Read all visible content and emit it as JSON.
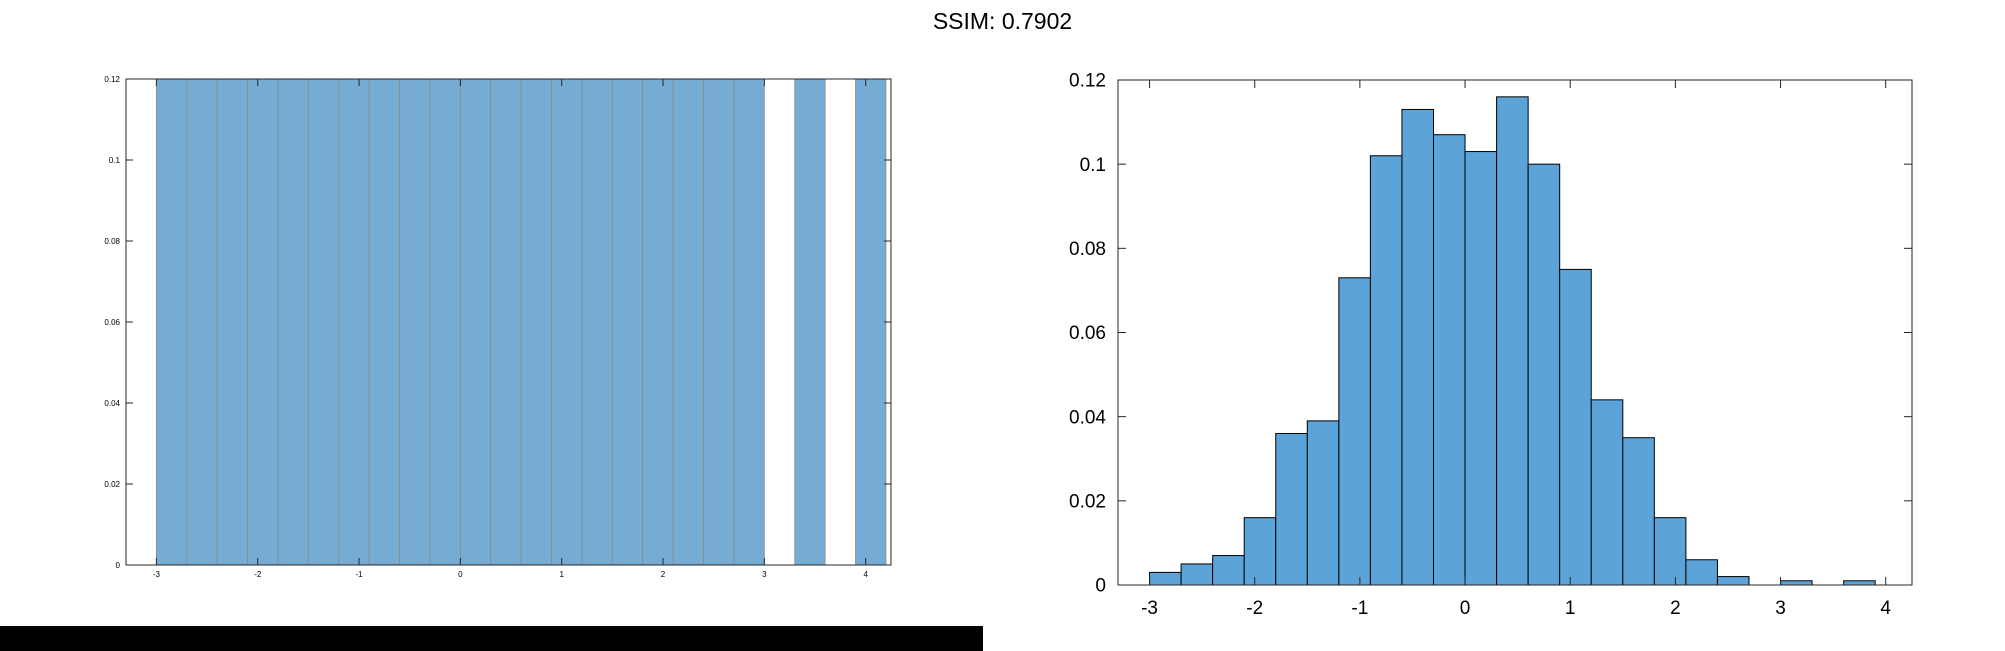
{
  "header": {
    "title": "SSIM: 0.7902"
  },
  "chart_data": [
    {
      "type": "bar",
      "bin_width": 0.3,
      "bin_start": -3.0,
      "values": [
        0.12,
        0.12,
        0.12,
        0.12,
        0.12,
        0.12,
        0.12,
        0.12,
        0.12,
        0.12,
        0.12,
        0.12,
        0.12,
        0.12,
        0.12,
        0.12,
        0.12,
        0.12,
        0.12,
        0.12,
        0,
        0.12,
        0,
        0.12
      ],
      "xlim": [
        -3.3,
        4.25
      ],
      "ylim": [
        0,
        0.12
      ],
      "xticks": [
        "-3",
        "-2",
        "-1",
        "0",
        "1",
        "2",
        "3",
        "4"
      ],
      "yticks": [
        "0",
        "0.02",
        "0.04",
        "0.06",
        "0.08",
        "0.1",
        "0.12"
      ],
      "bar_color": "#76acd3",
      "edge_color": "#8a8a8a",
      "grid": false
    },
    {
      "type": "bar",
      "bin_width": 0.3,
      "bin_start": -3.0,
      "values": [
        0.003,
        0.005,
        0.007,
        0.016,
        0.036,
        0.039,
        0.073,
        0.102,
        0.113,
        0.107,
        0.103,
        0.116,
        0.1,
        0.075,
        0.044,
        0.035,
        0.016,
        0.006,
        0.002,
        0,
        0.001,
        0,
        0.001
      ],
      "xlim": [
        -3.3,
        4.25
      ],
      "ylim": [
        0,
        0.12
      ],
      "xticks": [
        "-3",
        "-2",
        "-1",
        "0",
        "1",
        "2",
        "3",
        "4"
      ],
      "yticks": [
        "0",
        "0.02",
        "0.04",
        "0.06",
        "0.08",
        "0.1",
        "0.12"
      ],
      "bar_color": "#5ba3d8",
      "edge_color": "#000000",
      "grid": false
    }
  ]
}
